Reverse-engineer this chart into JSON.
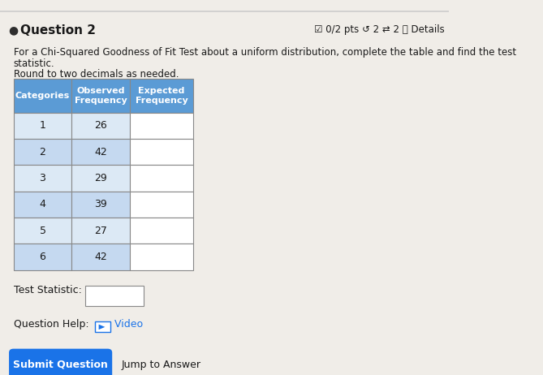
{
  "title_question": "Question 2",
  "header_right": "☑ 0/2 pts ↺ 2 ⇄ 2 ⓘ Details",
  "body_text_line1": "For a Chi-Squared Goodness of Fit Test about a uniform distribution, complete the table and find the test",
  "body_text_line2": "statistic.",
  "body_text_line3": "Round to two decimals as needed.",
  "col_headers": [
    "Categories",
    "Observed\nFrequency",
    "Expected\nFrequency"
  ],
  "categories": [
    "1",
    "2",
    "3",
    "4",
    "5",
    "6"
  ],
  "observed": [
    "26",
    "42",
    "29",
    "39",
    "27",
    "42"
  ],
  "test_statistic_label": "Test Statistic:",
  "question_help_label": "Question Help:",
  "video_label": " Video",
  "submit_label": "Submit Question",
  "jump_label": "Jump to Answer",
  "bg_color": "#f0ede8",
  "table_header_bg": "#5b9bd5",
  "table_row_bg_light": "#dce9f5",
  "table_row_bg_mid": "#c5d9f0",
  "expected_cell_bg": "#ffffff",
  "input_box_bg": "#ffffff",
  "submit_btn_bg": "#1a73e8",
  "submit_btn_text": "#ffffff",
  "bullet_color": "#2e2e2e",
  "header_border_color": "#cccccc",
  "table_border_color": "#888888",
  "text_color": "#1a1a1a",
  "link_color": "#1a73e8",
  "video_icon_color": "#1a73e8"
}
